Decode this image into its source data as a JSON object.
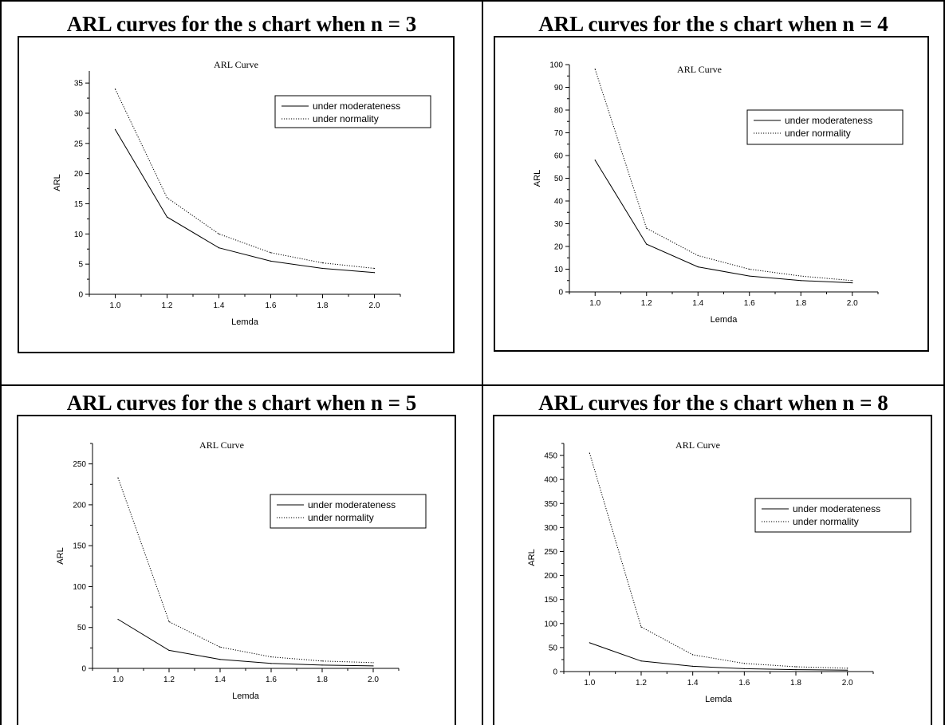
{
  "charts": [
    {
      "heading": "ARL curves for the s chart when n = 3",
      "chart_title": "ARL Curve",
      "xlabel": "Lemda",
      "ylabel": "ARL",
      "xlim": [
        0.9,
        2.1
      ],
      "ylim": [
        0,
        37
      ],
      "xticks": [
        "1.0",
        "1.2",
        "1.4",
        "1.6",
        "1.8",
        "2.0"
      ],
      "yticks": [
        "0",
        "5",
        "10",
        "15",
        "20",
        "25",
        "30",
        "35"
      ],
      "legend": [
        "under moderateness",
        "under normality"
      ]
    },
    {
      "heading": "ARL curves for the s chart when n = 4",
      "chart_title": "ARL Curve",
      "xlabel": "Lemda",
      "ylabel": "ARL",
      "xlim": [
        0.9,
        2.1
      ],
      "ylim": [
        0,
        100
      ],
      "xticks": [
        "1.0",
        "1.2",
        "1.4",
        "1.6",
        "1.8",
        "2.0"
      ],
      "yticks": [
        "0",
        "10",
        "20",
        "30",
        "40",
        "50",
        "60",
        "70",
        "80",
        "90",
        "100"
      ],
      "legend": [
        "under moderateness",
        "under normality"
      ]
    },
    {
      "heading": "ARL curves for the s chart when n = 5",
      "chart_title": "ARL Curve",
      "xlabel": "Lemda",
      "ylabel": "ARL",
      "xlim": [
        0.9,
        2.1
      ],
      "ylim": [
        0,
        275
      ],
      "xticks": [
        "1.0",
        "1.2",
        "1.4",
        "1.6",
        "1.8",
        "2.0"
      ],
      "yticks": [
        "0",
        "50",
        "100",
        "150",
        "200",
        "250"
      ],
      "legend": [
        "under moderateness",
        "under normality"
      ]
    },
    {
      "heading": "ARL curves for the s chart when n = 8",
      "chart_title": "ARL Curve",
      "xlabel": "Lemda",
      "ylabel": "ARL",
      "xlim": [
        0.9,
        2.1
      ],
      "ylim": [
        0,
        475
      ],
      "xticks": [
        "1.0",
        "1.2",
        "1.4",
        "1.6",
        "1.8",
        "2.0"
      ],
      "yticks": [
        "0",
        "50",
        "100",
        "150",
        "200",
        "250",
        "300",
        "350",
        "400",
        "450"
      ],
      "legend": [
        "under moderateness",
        "under normality"
      ]
    }
  ],
  "chart_data": [
    {
      "type": "line",
      "title": "ARL Curve",
      "xlabel": "Lemda",
      "ylabel": "ARL",
      "x": [
        1.0,
        1.2,
        1.4,
        1.6,
        1.8,
        2.0
      ],
      "xlim": [
        0.9,
        2.1
      ],
      "ylim": [
        0,
        37
      ],
      "legend_position": "right",
      "grid": false,
      "series": [
        {
          "name": "under moderateness",
          "style": "solid",
          "values": [
            27.3,
            12.8,
            7.7,
            5.5,
            4.3,
            3.6
          ]
        },
        {
          "name": "under normality",
          "style": "dotted",
          "values": [
            34.0,
            16.0,
            10.0,
            6.9,
            5.2,
            4.3
          ]
        }
      ]
    },
    {
      "type": "line",
      "title": "ARL Curve",
      "xlabel": "Lemda",
      "ylabel": "ARL",
      "x": [
        1.0,
        1.2,
        1.4,
        1.6,
        1.8,
        2.0
      ],
      "xlim": [
        0.9,
        2.1
      ],
      "ylim": [
        0,
        100
      ],
      "legend_position": "top-right",
      "grid": false,
      "series": [
        {
          "name": "under moderateness",
          "style": "solid",
          "values": [
            58,
            21,
            11,
            7,
            5,
            4
          ]
        },
        {
          "name": "under normality",
          "style": "dotted",
          "values": [
            98,
            28,
            16,
            10,
            7,
            5
          ]
        }
      ]
    },
    {
      "type": "line",
      "title": "ARL Curve",
      "xlabel": "Lemda",
      "ylabel": "ARL",
      "x": [
        1.0,
        1.2,
        1.4,
        1.6,
        1.8,
        2.0
      ],
      "xlim": [
        0.9,
        2.1
      ],
      "ylim": [
        0,
        275
      ],
      "legend_position": "top-right",
      "grid": false,
      "series": [
        {
          "name": "under moderateness",
          "style": "solid",
          "values": [
            60,
            22,
            11,
            6,
            4,
            3
          ]
        },
        {
          "name": "under normality",
          "style": "dotted",
          "values": [
            233,
            57,
            26,
            14,
            9,
            7
          ]
        }
      ]
    },
    {
      "type": "line",
      "title": "ARL Curve",
      "xlabel": "Lemda",
      "ylabel": "ARL",
      "x": [
        1.0,
        1.2,
        1.4,
        1.6,
        1.8,
        2.0
      ],
      "xlim": [
        0.9,
        2.1
      ],
      "ylim": [
        0,
        475
      ],
      "legend_position": "top-right",
      "grid": false,
      "series": [
        {
          "name": "under moderateness",
          "style": "solid",
          "values": [
            60,
            22,
            11,
            6,
            4,
            3
          ]
        },
        {
          "name": "under normality",
          "style": "dotted",
          "values": [
            455,
            93,
            35,
            17,
            10,
            7
          ]
        }
      ]
    }
  ]
}
